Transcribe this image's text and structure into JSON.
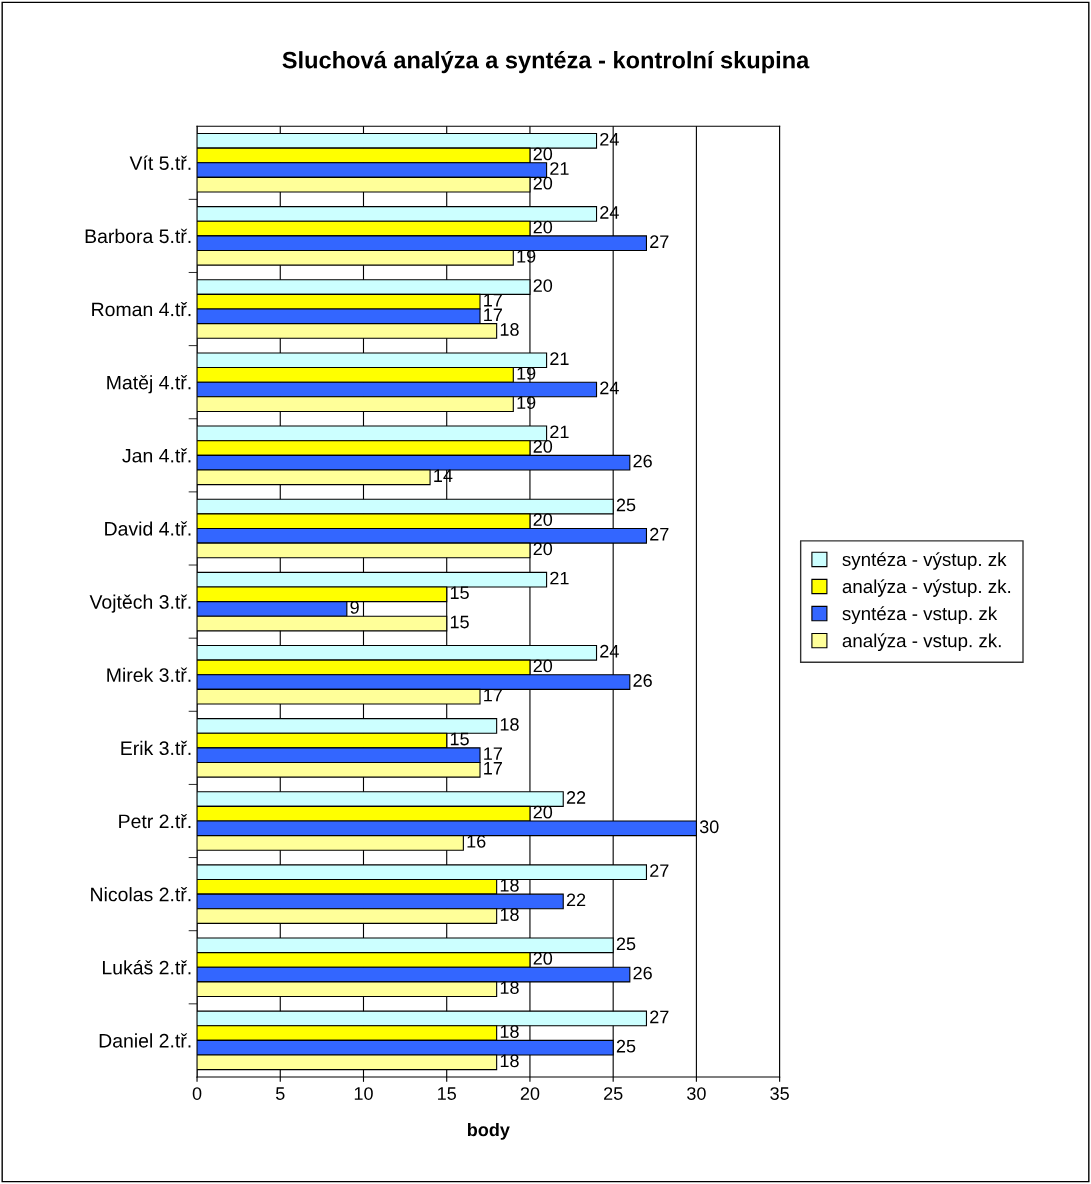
{
  "chart_data": {
    "type": "bar",
    "orientation": "horizontal",
    "title": "Sluchová analýza a syntéza - kontrolní skupina",
    "xlabel": "body",
    "categories": [
      "Vít 5.tř.",
      "Barbora 5.tř.",
      "Roman 4.tř.",
      "Matěj 4.tř.",
      "Jan 4.tř.",
      "David 4.tř.",
      "Vojtěch 3.tř.",
      "Mirek 3.tř.",
      "Erik 3.tř.",
      "Petr 2.tř.",
      "Nicolas 2.tř.",
      "Lukáš 2.tř.",
      "Daniel 2.tř."
    ],
    "series": [
      {
        "name": "syntéza - výstup. zk",
        "color": "#ccffff",
        "values": [
          24,
          24,
          20,
          21,
          21,
          25,
          21,
          24,
          18,
          22,
          27,
          25,
          27
        ]
      },
      {
        "name": "analýza - výstup. zk.",
        "color": "#ffff00",
        "values": [
          20,
          20,
          17,
          19,
          20,
          20,
          15,
          20,
          15,
          20,
          18,
          20,
          18
        ]
      },
      {
        "name": "syntéza - vstup. zk",
        "color": "#3366ff",
        "values": [
          21,
          27,
          17,
          24,
          26,
          27,
          9,
          26,
          17,
          30,
          22,
          26,
          25
        ]
      },
      {
        "name": "analýza - vstup. zk.",
        "color": "#ffff99",
        "values": [
          20,
          19,
          18,
          19,
          14,
          20,
          15,
          17,
          17,
          16,
          18,
          18,
          18
        ]
      }
    ],
    "xlim": [
      0,
      35
    ],
    "xticks": [
      0,
      5,
      10,
      15,
      20,
      25,
      30,
      35
    ],
    "grid": "x",
    "legend": "right",
    "data_labels": true
  }
}
